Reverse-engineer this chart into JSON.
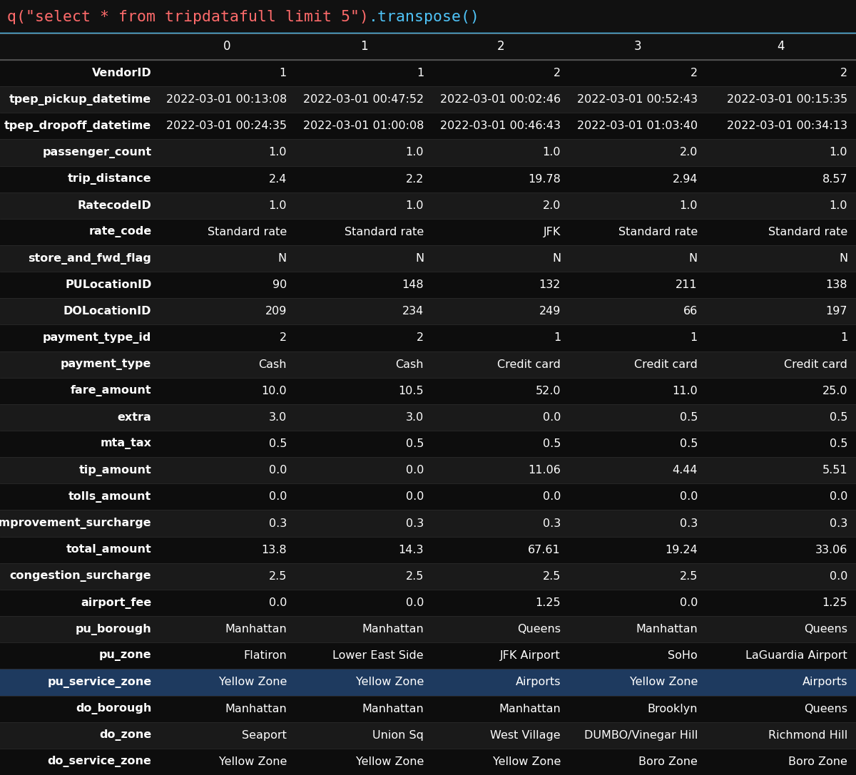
{
  "title_red": "q(\"select * from tripdatafull limit 5\")",
  "title_blue": ".transpose()",
  "bg_color": "#111111",
  "header_bg": "#111111",
  "row_bg_dark": "#0d0d0d",
  "row_bg_light": "#1a1a1a",
  "highlight_row_bg": "#1e3a5f",
  "border_color": "#333333",
  "text_color": "#ffffff",
  "header_text_color": "#ffffff",
  "title_border_color": "#4FC3F7",
  "red_color": "#FF6B6B",
  "blue_color": "#4FC3F7",
  "columns": [
    "",
    "0",
    "1",
    "2",
    "3",
    "4"
  ],
  "rows": [
    [
      "VendorID",
      "1",
      "1",
      "2",
      "2",
      "2"
    ],
    [
      "tpep_pickup_datetime",
      "2022-03-01 00:13:08",
      "2022-03-01 00:47:52",
      "2022-03-01 00:02:46",
      "2022-03-01 00:52:43",
      "2022-03-01 00:15:35"
    ],
    [
      "tpep_dropoff_datetime",
      "2022-03-01 00:24:35",
      "2022-03-01 01:00:08",
      "2022-03-01 00:46:43",
      "2022-03-01 01:03:40",
      "2022-03-01 00:34:13"
    ],
    [
      "passenger_count",
      "1.0",
      "1.0",
      "1.0",
      "2.0",
      "1.0"
    ],
    [
      "trip_distance",
      "2.4",
      "2.2",
      "19.78",
      "2.94",
      "8.57"
    ],
    [
      "RatecodeID",
      "1.0",
      "1.0",
      "2.0",
      "1.0",
      "1.0"
    ],
    [
      "rate_code",
      "Standard rate",
      "Standard rate",
      "JFK",
      "Standard rate",
      "Standard rate"
    ],
    [
      "store_and_fwd_flag",
      "N",
      "N",
      "N",
      "N",
      "N"
    ],
    [
      "PULocationID",
      "90",
      "148",
      "132",
      "211",
      "138"
    ],
    [
      "DOLocationID",
      "209",
      "234",
      "249",
      "66",
      "197"
    ],
    [
      "payment_type_id",
      "2",
      "2",
      "1",
      "1",
      "1"
    ],
    [
      "payment_type",
      "Cash",
      "Cash",
      "Credit card",
      "Credit card",
      "Credit card"
    ],
    [
      "fare_amount",
      "10.0",
      "10.5",
      "52.0",
      "11.0",
      "25.0"
    ],
    [
      "extra",
      "3.0",
      "3.0",
      "0.0",
      "0.5",
      "0.5"
    ],
    [
      "mta_tax",
      "0.5",
      "0.5",
      "0.5",
      "0.5",
      "0.5"
    ],
    [
      "tip_amount",
      "0.0",
      "0.0",
      "11.06",
      "4.44",
      "5.51"
    ],
    [
      "tolls_amount",
      "0.0",
      "0.0",
      "0.0",
      "0.0",
      "0.0"
    ],
    [
      "improvement_surcharge",
      "0.3",
      "0.3",
      "0.3",
      "0.3",
      "0.3"
    ],
    [
      "total_amount",
      "13.8",
      "14.3",
      "67.61",
      "19.24",
      "33.06"
    ],
    [
      "congestion_surcharge",
      "2.5",
      "2.5",
      "2.5",
      "2.5",
      "0.0"
    ],
    [
      "airport_fee",
      "0.0",
      "0.0",
      "1.25",
      "0.0",
      "1.25"
    ],
    [
      "pu_borough",
      "Manhattan",
      "Manhattan",
      "Queens",
      "Manhattan",
      "Queens"
    ],
    [
      "pu_zone",
      "Flatiron",
      "Lower East Side",
      "JFK Airport",
      "SoHo",
      "LaGuardia Airport"
    ],
    [
      "pu_service_zone",
      "Yellow Zone",
      "Yellow Zone",
      "Airports",
      "Yellow Zone",
      "Airports"
    ],
    [
      "do_borough",
      "Manhattan",
      "Manhattan",
      "Manhattan",
      "Brooklyn",
      "Queens"
    ],
    [
      "do_zone",
      "Seaport",
      "Union Sq",
      "West Village",
      "DUMBO/Vinegar Hill",
      "Richmond Hill"
    ],
    [
      "do_service_zone",
      "Yellow Zone",
      "Yellow Zone",
      "Yellow Zone",
      "Boro Zone",
      "Boro Zone"
    ]
  ],
  "highlight_row_index": 23,
  "col_starts": [
    0.0,
    0.185,
    0.345,
    0.505,
    0.665,
    0.825
  ],
  "col_ends": [
    0.185,
    0.345,
    0.505,
    0.665,
    0.825,
    1.0
  ]
}
